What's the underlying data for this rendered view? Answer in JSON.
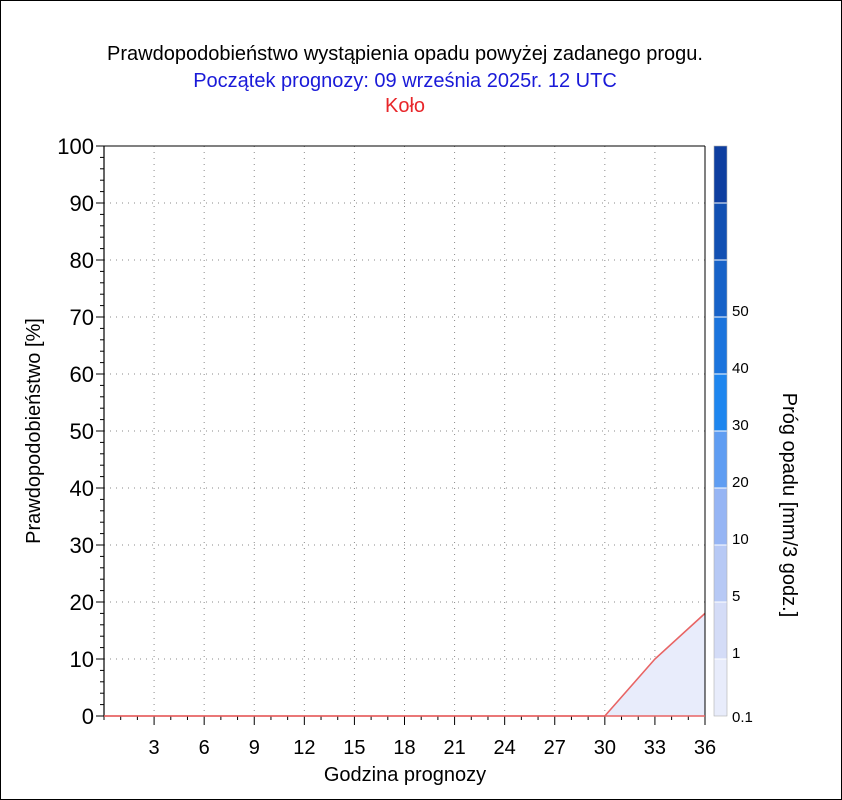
{
  "chart_data": {
    "type": "area",
    "title": "Prawdopodobieństwo wystąpienia opadu powyżej zadanego progu.",
    "subtitle": "Początek prognozy: 09 września 2025r. 12 UTC",
    "location": "Koło",
    "xlabel": "Godzina prognozy",
    "ylabel": "Prawdopodobieństwo [%]",
    "xlim": [
      0,
      36
    ],
    "ylim": [
      0,
      100
    ],
    "x_ticks": [
      3,
      6,
      9,
      12,
      15,
      18,
      21,
      24,
      27,
      30,
      33,
      36
    ],
    "y_ticks": [
      0,
      10,
      20,
      30,
      40,
      50,
      60,
      70,
      80,
      90,
      100
    ],
    "grid": true,
    "series": [
      {
        "threshold": 0.1,
        "color": "#e8ecfb",
        "line_color": "#e86464",
        "x": [
          0,
          3,
          6,
          9,
          12,
          15,
          18,
          21,
          24,
          27,
          30,
          33,
          36
        ],
        "y": [
          0,
          0,
          0,
          0,
          0,
          0,
          0,
          0,
          0,
          0,
          0,
          10,
          18
        ]
      }
    ],
    "colorbar": {
      "label": "Próg opadu [mm/3 godz.]",
      "tick_labels": [
        "0.1",
        "1",
        "5",
        "10",
        "20",
        "30",
        "40",
        "50"
      ],
      "colors": [
        "#e8ecfb",
        "#d4dcf7",
        "#b7c9f5",
        "#96b5f4",
        "#5f9df2",
        "#1e86ef",
        "#1b74dd",
        "#1762c8",
        "#1250b3",
        "#0e3ea0"
      ]
    }
  }
}
